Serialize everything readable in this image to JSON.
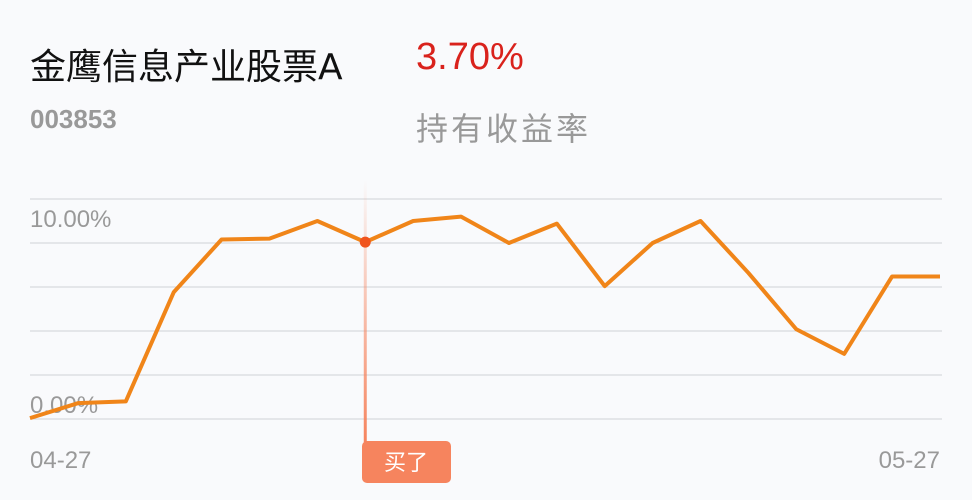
{
  "header": {
    "fund_name": "金鹰信息产业股票A",
    "return_value": "3.70%",
    "fund_code": "003853",
    "return_label": "持有收益率"
  },
  "chart_data": {
    "type": "line",
    "ylabel_ticks": [
      "10.00%",
      "0.00%"
    ],
    "x_tick_labels": [
      "04-27",
      "05-27"
    ],
    "ylim": [
      0,
      12.5
    ],
    "grid": true,
    "line_color": "#f08519",
    "values": [
      0.05,
      0.9,
      1.0,
      7.2,
      10.2,
      10.25,
      11.25,
      10.05,
      11.25,
      11.5,
      10.0,
      11.1,
      7.55,
      10.0,
      11.25,
      8.3,
      5.1,
      3.7,
      8.1,
      8.1
    ],
    "marker": {
      "index": 7,
      "label": "买了",
      "color": "#f0541e",
      "badge_color": "#f6845e"
    }
  }
}
